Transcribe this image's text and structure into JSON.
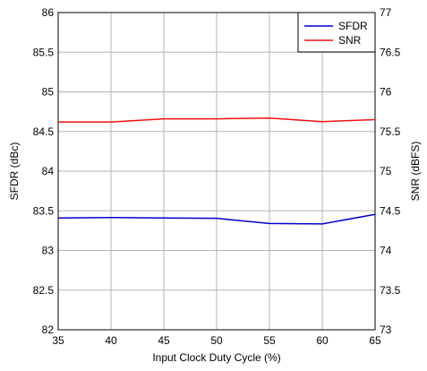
{
  "chart_data": {
    "type": "line",
    "title": "",
    "xlabel": "Input Clock Duty Cycle (%)",
    "ylabel_left": "SFDR (dBc)",
    "ylabel_right": "SNR (dBFS)",
    "xlim": [
      35,
      65
    ],
    "ylim_left": [
      82,
      86
    ],
    "ylim_right": [
      73,
      77
    ],
    "x_ticks": [
      "35",
      "40",
      "45",
      "50",
      "55",
      "60",
      "65"
    ],
    "y_left_ticks": [
      "82",
      "82.5",
      "83",
      "83.5",
      "84",
      "84.5",
      "85",
      "85.5",
      "86"
    ],
    "y_right_ticks": [
      "73",
      "73.5",
      "74",
      "74.5",
      "75",
      "75.5",
      "76",
      "76.5",
      "77"
    ],
    "grid": true,
    "legend_position": "top-right",
    "series": [
      {
        "name": "SFDR",
        "axis": "left",
        "color": "#0000cc",
        "x": [
          35,
          40,
          45,
          50,
          55,
          60,
          65
        ],
        "y": [
          83.41,
          83.415,
          83.41,
          83.405,
          83.34,
          83.335,
          83.455
        ]
      },
      {
        "name": "SNR",
        "axis": "right",
        "color": "#ee1111",
        "x": [
          35,
          40,
          45,
          50,
          55,
          60,
          65
        ],
        "y": [
          75.62,
          75.62,
          75.66,
          75.66,
          75.67,
          75.625,
          75.65
        ]
      }
    ]
  }
}
